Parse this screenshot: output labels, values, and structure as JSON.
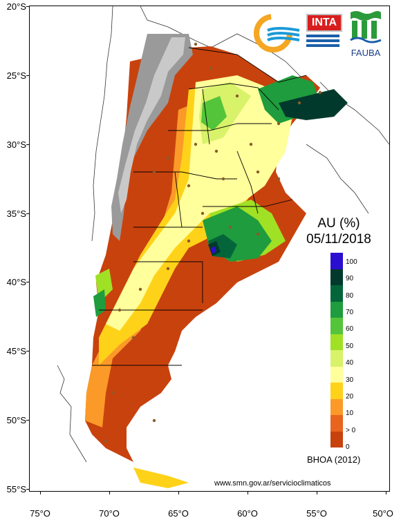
{
  "map": {
    "title": "AU (%)",
    "date": "05/11/2018",
    "scheme_label": "BHOA (2012)",
    "source_url": "www.smn.gov.ar/servicioclimaticos",
    "latitude_labels": [
      "20°S",
      "25°S",
      "30°S",
      "35°S",
      "40°S",
      "45°S",
      "50°S",
      "55°S"
    ],
    "longitude_labels": [
      "75°O",
      "70°O",
      "65°O",
      "60°O",
      "55°O",
      "50°O"
    ]
  },
  "legend": {
    "labels": [
      "100",
      "90",
      "80",
      "70",
      "60",
      "50",
      "40",
      "30",
      "20",
      "10",
      "> 0",
      "0"
    ],
    "colors": [
      "#2a0fd0",
      "#013a2c",
      "#05653a",
      "#1f9c3d",
      "#54c43b",
      "#a0e025",
      "#d8f26a",
      "#ffff9c",
      "#ffd21a",
      "#fb9a28",
      "#e9641d",
      "#c8420e"
    ]
  },
  "logos": {
    "inta": "INTA",
    "fauba": "FAUBA"
  }
}
